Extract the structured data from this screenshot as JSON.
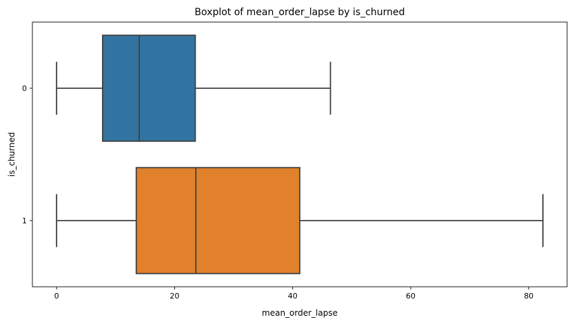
{
  "chart_data": {
    "type": "boxplot",
    "title": "Boxplot of mean_order_lapse by is_churned",
    "xlabel": "mean_order_lapse",
    "ylabel": "is_churned",
    "orientation": "horizontal",
    "xlim": [
      -4.1,
      86.5
    ],
    "xticks": [
      0,
      20,
      40,
      60,
      80
    ],
    "grid": false,
    "categories": [
      "0",
      "1"
    ],
    "boxes": [
      {
        "category": "0",
        "whisker_low": 0,
        "q1": 7.8,
        "median": 14.0,
        "q3": 23.5,
        "whisker_high": 46.4,
        "color": "#3274a1"
      },
      {
        "category": "1",
        "whisker_low": 0,
        "q1": 13.5,
        "median": 23.6,
        "q3": 41.2,
        "whisker_high": 82.4,
        "color": "#e1812c"
      }
    ]
  }
}
